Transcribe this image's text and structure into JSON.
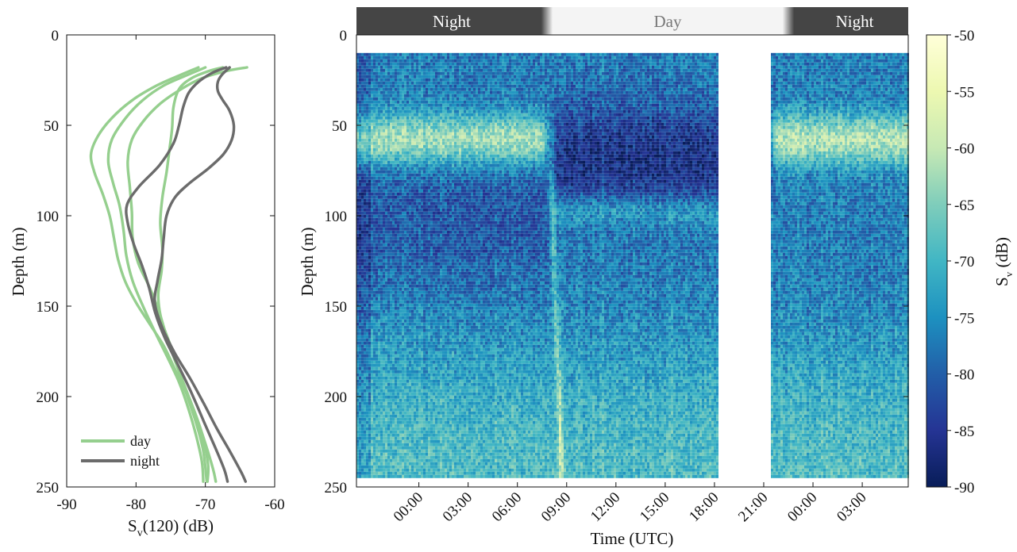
{
  "colors": {
    "day": "#95cf8e",
    "night": "#6b6b6b",
    "night_band": "#454545",
    "day_band": "#f4f4f4",
    "colormap": [
      "#081d58",
      "#253494",
      "#225ea8",
      "#1d91c0",
      "#41b6c4",
      "#7fcdbb",
      "#c7e9b4",
      "#edf8b1",
      "#ffffd9"
    ]
  },
  "chart_data": [
    {
      "type": "line",
      "xlabel": "S",
      "xlabel_sub": "v",
      "xlabel_suffix": "(120) (dB)",
      "ylabel": "Depth (m)",
      "xlim": [
        -90,
        -60
      ],
      "ylim": [
        250,
        0
      ],
      "y_reversed": true,
      "xticks": [
        "-90",
        "-80",
        "-70",
        "-60"
      ],
      "yticks": [
        "0",
        "50",
        "100",
        "150",
        "200",
        "250"
      ],
      "legend": {
        "position": "bottom-left",
        "items": [
          {
            "label": "day",
            "color": "#95cf8e"
          },
          {
            "label": "night",
            "color": "#6b6b6b"
          }
        ]
      },
      "series": [
        {
          "name": "day",
          "points": [
            [
              -71.0,
              18
            ],
            [
              -73.5,
              22
            ],
            [
              -77,
              28
            ],
            [
              -80.5,
              36
            ],
            [
              -83.5,
              46
            ],
            [
              -85.5,
              56
            ],
            [
              -86.5,
              66
            ],
            [
              -86,
              76
            ],
            [
              -84.8,
              88
            ],
            [
              -83.8,
              100
            ],
            [
              -83.2,
              112
            ],
            [
              -82.6,
              124
            ],
            [
              -81.6,
              136
            ],
            [
              -80,
              148
            ],
            [
              -78,
              160
            ],
            [
              -76,
              172
            ],
            [
              -74.5,
              184
            ],
            [
              -73,
              196
            ],
            [
              -71.5,
              210
            ],
            [
              -70.3,
              224
            ],
            [
              -69.6,
              238
            ],
            [
              -69.7,
              247
            ]
          ]
        },
        {
          "name": "day",
          "points": [
            [
              -70,
              18
            ],
            [
              -72.5,
              22
            ],
            [
              -76,
              28
            ],
            [
              -79,
              36
            ],
            [
              -81.5,
              46
            ],
            [
              -83.5,
              58
            ],
            [
              -84,
              70
            ],
            [
              -83.3,
              82
            ],
            [
              -82.4,
              94
            ],
            [
              -81.8,
              108
            ],
            [
              -81.4,
              122
            ],
            [
              -80.5,
              136
            ],
            [
              -79,
              150
            ],
            [
              -77.3,
              164
            ],
            [
              -75.5,
              178
            ],
            [
              -73.8,
              192
            ],
            [
              -72.5,
              206
            ],
            [
              -71.3,
              222
            ],
            [
              -70.5,
              236
            ],
            [
              -70.3,
              247
            ]
          ]
        },
        {
          "name": "day",
          "points": [
            [
              -67.5,
              18
            ],
            [
              -69.5,
              20
            ],
            [
              -72,
              24
            ],
            [
              -73.8,
              30
            ],
            [
              -74.6,
              40
            ],
            [
              -74.8,
              52
            ],
            [
              -75.2,
              64
            ],
            [
              -75.6,
              76
            ],
            [
              -76.2,
              90
            ],
            [
              -76.5,
              104
            ],
            [
              -76.2,
              118
            ],
            [
              -76.3,
              130
            ],
            [
              -76.8,
              144
            ],
            [
              -76.3,
              158
            ],
            [
              -75,
              172
            ],
            [
              -73.8,
              186
            ],
            [
              -72.6,
              200
            ],
            [
              -71.3,
              215
            ],
            [
              -70.3,
              230
            ],
            [
              -69.8,
              247
            ]
          ]
        },
        {
          "name": "day",
          "points": [
            [
              -64,
              18
            ],
            [
              -67,
              20
            ],
            [
              -70.5,
              24
            ],
            [
              -73.5,
              30
            ],
            [
              -76.5,
              38
            ],
            [
              -79,
              48
            ],
            [
              -80.6,
              58
            ],
            [
              -81.2,
              70
            ],
            [
              -80.9,
              84
            ],
            [
              -80.6,
              98
            ],
            [
              -80.5,
              112
            ],
            [
              -79.7,
              126
            ],
            [
              -78,
              140
            ],
            [
              -76.6,
              154
            ],
            [
              -75.5,
              168
            ],
            [
              -74.2,
              182
            ],
            [
              -72.8,
              196
            ],
            [
              -71.3,
              211
            ],
            [
              -70,
              226
            ],
            [
              -68.9,
              240
            ],
            [
              -68.5,
              247
            ]
          ]
        },
        {
          "name": "night",
          "points": [
            [
              -67,
              18
            ],
            [
              -69,
              21
            ],
            [
              -71,
              26
            ],
            [
              -72.4,
              32
            ],
            [
              -73.2,
              40
            ],
            [
              -73.8,
              50
            ],
            [
              -74.6,
              60
            ],
            [
              -76.6,
              72
            ],
            [
              -79.6,
              84
            ],
            [
              -81.3,
              94
            ],
            [
              -81.2,
              104
            ],
            [
              -80.3,
              116
            ],
            [
              -79.1,
              128
            ],
            [
              -78.1,
              140
            ],
            [
              -77.2,
              154
            ],
            [
              -75.8,
              168
            ],
            [
              -74,
              182
            ],
            [
              -72,
              198
            ],
            [
              -70.2,
              214
            ],
            [
              -68.6,
              228
            ],
            [
              -67.3,
              240
            ],
            [
              -66.8,
              247
            ]
          ]
        },
        {
          "name": "night",
          "points": [
            [
              -66.5,
              18
            ],
            [
              -67.6,
              22
            ],
            [
              -68.2,
              26
            ],
            [
              -68.2,
              31
            ],
            [
              -67.5,
              36
            ],
            [
              -66.5,
              42
            ],
            [
              -65.9,
              50
            ],
            [
              -66.2,
              58
            ],
            [
              -67.4,
              66
            ],
            [
              -69.6,
              74
            ],
            [
              -72.3,
              82
            ],
            [
              -74.4,
              90
            ],
            [
              -75.6,
              100
            ],
            [
              -76,
              112
            ],
            [
              -76.3,
              124
            ],
            [
              -76.9,
              136
            ],
            [
              -77.3,
              148
            ],
            [
              -76.2,
              162
            ],
            [
              -74.4,
              176
            ],
            [
              -72.2,
              190
            ],
            [
              -70.2,
              204
            ],
            [
              -68.3,
              218
            ],
            [
              -66.5,
              230
            ],
            [
              -64.8,
              242
            ],
            [
              -64.2,
              247
            ]
          ]
        }
      ]
    },
    {
      "type": "heatmap",
      "xlabel": "Time (UTC)",
      "ylabel": "Depth (m)",
      "ylim": [
        250,
        0
      ],
      "xticks": [
        "00:00",
        "03:00",
        "06:00",
        "09:00",
        "12:00",
        "15:00",
        "18:00",
        "21:00",
        "00:00",
        "03:00"
      ],
      "yticks": [
        "0",
        "50",
        "100",
        "150",
        "200",
        "250"
      ],
      "bands": [
        {
          "label": "Night",
          "kind": "night",
          "start_hour": -3.8,
          "end_hour": 7.8
        },
        {
          "label": "Day",
          "kind": "day",
          "start_hour": 7.8,
          "end_hour": 22.5
        },
        {
          "label": "Night",
          "kind": "night",
          "start_hour": 22.5,
          "end_hour": 29.8
        }
      ],
      "data_gap_hours": [
        18.2,
        21.4
      ],
      "data_depth_range": [
        10,
        245
      ],
      "features": {
        "night_scattering_layer_depth": 58,
        "day_scattering_layer_depth": 98,
        "migration_window_hours": [
          7.2,
          8.7
        ]
      },
      "colorbar": {
        "label": "S",
        "label_sub": "v",
        "label_suffix": " (dB)",
        "range": [
          -90,
          -50
        ],
        "ticks": [
          "-50",
          "-55",
          "-60",
          "-65",
          "-70",
          "-75",
          "-80",
          "-85",
          "-90"
        ]
      }
    }
  ]
}
